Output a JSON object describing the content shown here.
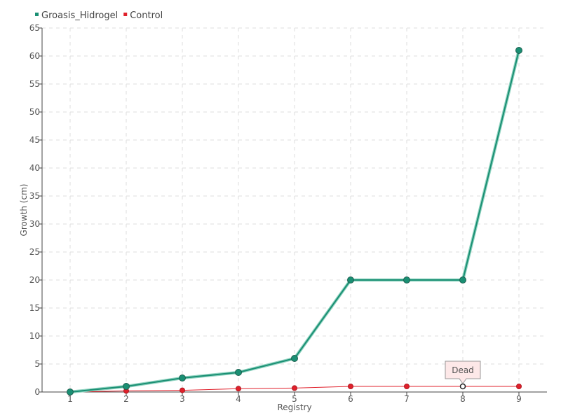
{
  "chart_data": {
    "type": "line",
    "xlabel": "Registry",
    "ylabel": "Growth (cm)",
    "categories": [
      "1",
      "2",
      "3",
      "4",
      "5",
      "6",
      "7",
      "8",
      "9"
    ],
    "ylim": [
      0,
      65
    ],
    "yticks": [
      0,
      5,
      10,
      15,
      20,
      25,
      30,
      35,
      40,
      45,
      50,
      55,
      60,
      65
    ],
    "grid": true,
    "legend_position": "top-left",
    "series": [
      {
        "name": "Groasis_Hidrogel",
        "color": "#1a8f73",
        "values": [
          0,
          1,
          2.5,
          3.5,
          6,
          20,
          20,
          20,
          61
        ]
      },
      {
        "name": "Control",
        "color": "#e0202b",
        "values": [
          0,
          0.2,
          0.3,
          0.6,
          0.7,
          1,
          1,
          1,
          1
        ]
      }
    ],
    "annotations": [
      {
        "series": "Control",
        "category": "8",
        "text": "Dead"
      }
    ]
  }
}
